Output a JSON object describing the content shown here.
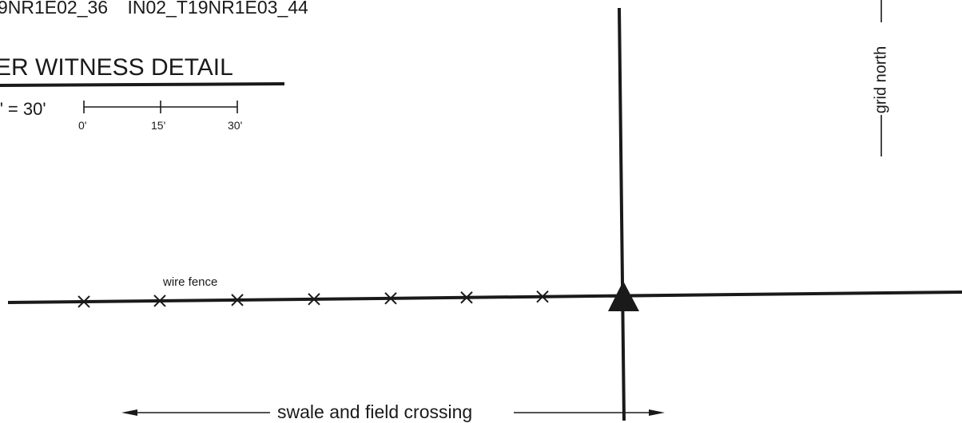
{
  "header": {
    "ids": [
      "9NR1E02_36",
      "IN02_T19NR1E03_44"
    ],
    "title": "ER WITNESS DETAIL",
    "scale_text": "\" = 30'",
    "scale_ticks": [
      "0'",
      "15'",
      "30'"
    ]
  },
  "labels": {
    "wire_fence": "wire fence",
    "swale": "swale and field crossing",
    "grid_north": "grid north"
  },
  "fence_markers": [
    "x",
    "x",
    "x",
    "x",
    "x",
    "x",
    "x"
  ],
  "colors": {
    "ink": "#1a1a1a",
    "background": "#ffffff"
  }
}
